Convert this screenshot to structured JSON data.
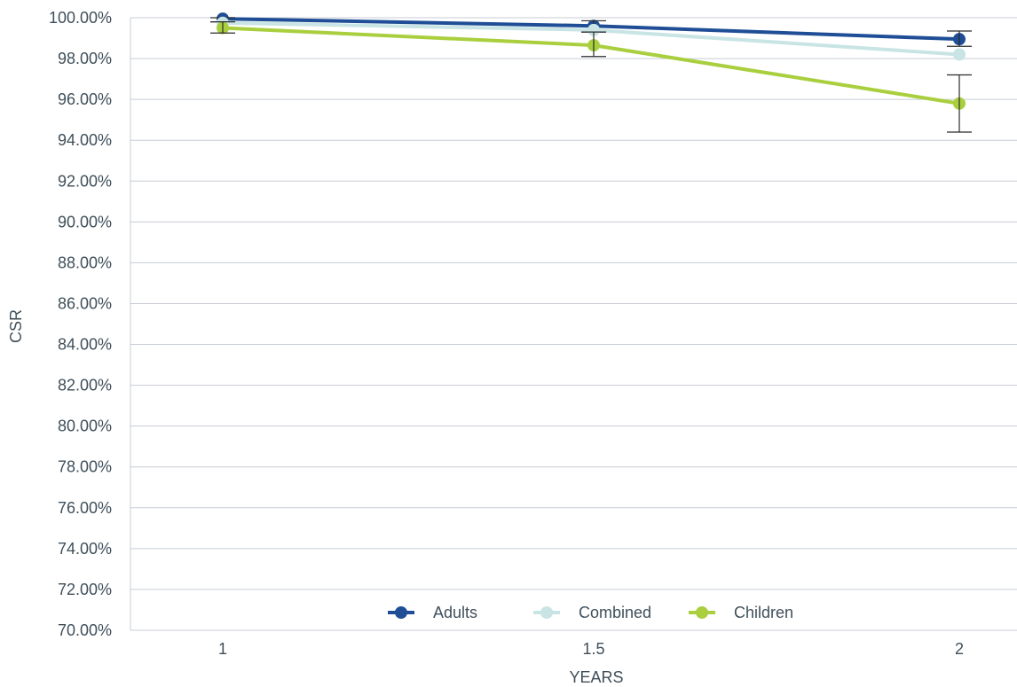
{
  "chart_data": {
    "type": "line",
    "x": [
      1,
      1.5,
      2
    ],
    "x_tick_labels": [
      "1",
      "1.5",
      "2"
    ],
    "xlabel": "YEARS",
    "ylabel": "CSR",
    "ylim": [
      70,
      100
    ],
    "y_tick_step": 2,
    "y_tick_labels": [
      "70.00%",
      "72.00%",
      "74.00%",
      "76.00%",
      "78.00%",
      "80.00%",
      "82.00%",
      "84.00%",
      "86.00%",
      "88.00%",
      "90.00%",
      "92.00%",
      "94.00%",
      "96.00%",
      "98.00%",
      "100.00%"
    ],
    "grid": true,
    "legend_position": "bottom-center",
    "series": [
      {
        "name": "Adults",
        "color": "#1f4e96",
        "values": [
          99.95,
          99.6,
          98.95
        ],
        "error_low": [
          99.8,
          99.3,
          98.6
        ],
        "error_high": [
          100.0,
          99.85,
          99.35
        ]
      },
      {
        "name": "Combined",
        "color": "#c9e4e4",
        "values": [
          99.75,
          99.4,
          98.2
        ],
        "error_low": null,
        "error_high": null
      },
      {
        "name": "Children",
        "color": "#a9cf3e",
        "values": [
          99.5,
          98.65,
          95.8
        ],
        "error_low": [
          99.25,
          98.1,
          94.4
        ],
        "error_high": [
          99.8,
          99.3,
          97.2
        ]
      }
    ]
  }
}
